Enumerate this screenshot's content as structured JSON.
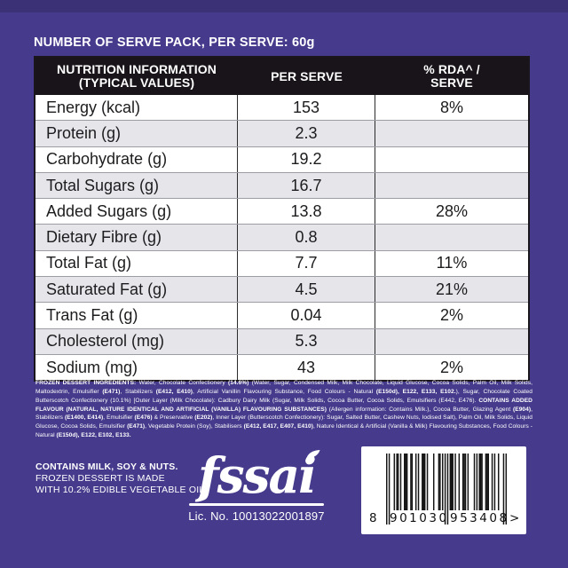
{
  "colors": {
    "background": "#453a8b",
    "table_header_bg": "#19141a",
    "row_alt_bg": "#e6e6ea",
    "text_light": "#ffffff",
    "text_dark": "#1c1c1e"
  },
  "header": {
    "pack_label": "NUMBER OF SERVE PACK, PER SERVE: 60g"
  },
  "table": {
    "columns": [
      "NUTRITION INFORMATION\n(TYPICAL VALUES)",
      "PER SERVE",
      "% RDA^ /\nSERVE"
    ],
    "rows": [
      {
        "label": "Energy (kcal)",
        "per_serve": "153",
        "rda": "8%"
      },
      {
        "label": "Protein (g)",
        "per_serve": "2.3",
        "rda": ""
      },
      {
        "label": "Carbohydrate (g)",
        "per_serve": "19.2",
        "rda": ""
      },
      {
        "label": "Total Sugars (g)",
        "per_serve": "16.7",
        "rda": ""
      },
      {
        "label": "Added Sugars (g)",
        "per_serve": "13.8",
        "rda": "28%"
      },
      {
        "label": "Dietary Fibre (g)",
        "per_serve": "0.8",
        "rda": ""
      },
      {
        "label": "Total Fat (g)",
        "per_serve": "7.7",
        "rda": "11%"
      },
      {
        "label": "Saturated Fat (g)",
        "per_serve": "4.5",
        "rda": "21%"
      },
      {
        "label": "Trans Fat (g)",
        "per_serve": "0.04",
        "rda": "2%"
      },
      {
        "label": "Cholesterol (mg)",
        "per_serve": "5.3",
        "rda": ""
      },
      {
        "label": "Sodium (mg)",
        "per_serve": "43",
        "rda": "2%"
      }
    ]
  },
  "ingredients": {
    "segments": [
      {
        "t": "FROZEN DESSERT INGREDIENTS:",
        "b": true
      },
      {
        "t": " Water, Chocolate Confectionery ",
        "b": false
      },
      {
        "t": "(14.6%)",
        "b": true
      },
      {
        "t": " (Water, Sugar, Condensed Milk, Milk Chocolate, Liquid Glucose, Cocoa Solids, Palm Oil, Milk Solids, Maltodextrin, Emulsifier ",
        "b": false
      },
      {
        "t": "(E471)",
        "b": true
      },
      {
        "t": ", Stabilizers ",
        "b": false
      },
      {
        "t": "(E412, E410)",
        "b": true
      },
      {
        "t": ", Artificial Vanillin Flavouring Substance, Food Colours - Natural ",
        "b": false
      },
      {
        "t": "(E150d), E122, E133, E102.",
        "b": true
      },
      {
        "t": "), Sugar, Chocolate Coated Butterscotch Confectionery (10.1%) [Outer Layer (Milk Chocolate): Cadbury Dairy Milk (Sugar, Milk Solids, Cocoa Butter, Cocoa Solids, Emulsifiers (E442, E476). ",
        "b": false
      },
      {
        "t": "CONTAINS ADDED FLAVOUR (NATURAL, NATURE IDENTICAL AND ARTIFICIAL (VANILLA) FLAVOURING SUBSTANCES)",
        "b": true
      },
      {
        "t": " (Allergen information: Contains Milk.), Cocoa Butter, Glazing Agent ",
        "b": false
      },
      {
        "t": "(E904)",
        "b": true
      },
      {
        "t": ", Stabilizers ",
        "b": false
      },
      {
        "t": "(E1400, E414)",
        "b": true
      },
      {
        "t": ", Emulsifier ",
        "b": false
      },
      {
        "t": "(E476)",
        "b": true
      },
      {
        "t": " & Preservative ",
        "b": false
      },
      {
        "t": "(E202)",
        "b": true
      },
      {
        "t": ", Inner Layer (Butterscotch Confectionery): Sugar, Salted Butter, Cashew Nuts, Iodised Salt), Palm Oil, Milk Solids, Liquid Glucose, Cocoa Solids, Emulsifier ",
        "b": false
      },
      {
        "t": "(E471)",
        "b": true
      },
      {
        "t": ", Vegetable Protein (Soy), Stabilisers ",
        "b": false
      },
      {
        "t": "(E412, E417, E407, E410)",
        "b": true
      },
      {
        "t": ", Nature Identical & Artificial (Vanilla & Milk) Flavouring Substances, Food Colours - Natural ",
        "b": false
      },
      {
        "t": "(E150d), E122, E102, E133.",
        "b": true
      }
    ]
  },
  "allergen": {
    "line1": "CONTAINS MILK, SOY & NUTS.",
    "line2": "FROZEN DESSERT IS MADE",
    "line3": "WITH 10.2% EDIBLE VEGETABLE OIL."
  },
  "fssai": {
    "logo_text": "fssai",
    "license": "Lic. No. 10013022001897"
  },
  "barcode": {
    "value": "8901030953408",
    "first_digit": "8",
    "left_group": "901030",
    "right_group": "953408",
    "trailing": ">"
  }
}
